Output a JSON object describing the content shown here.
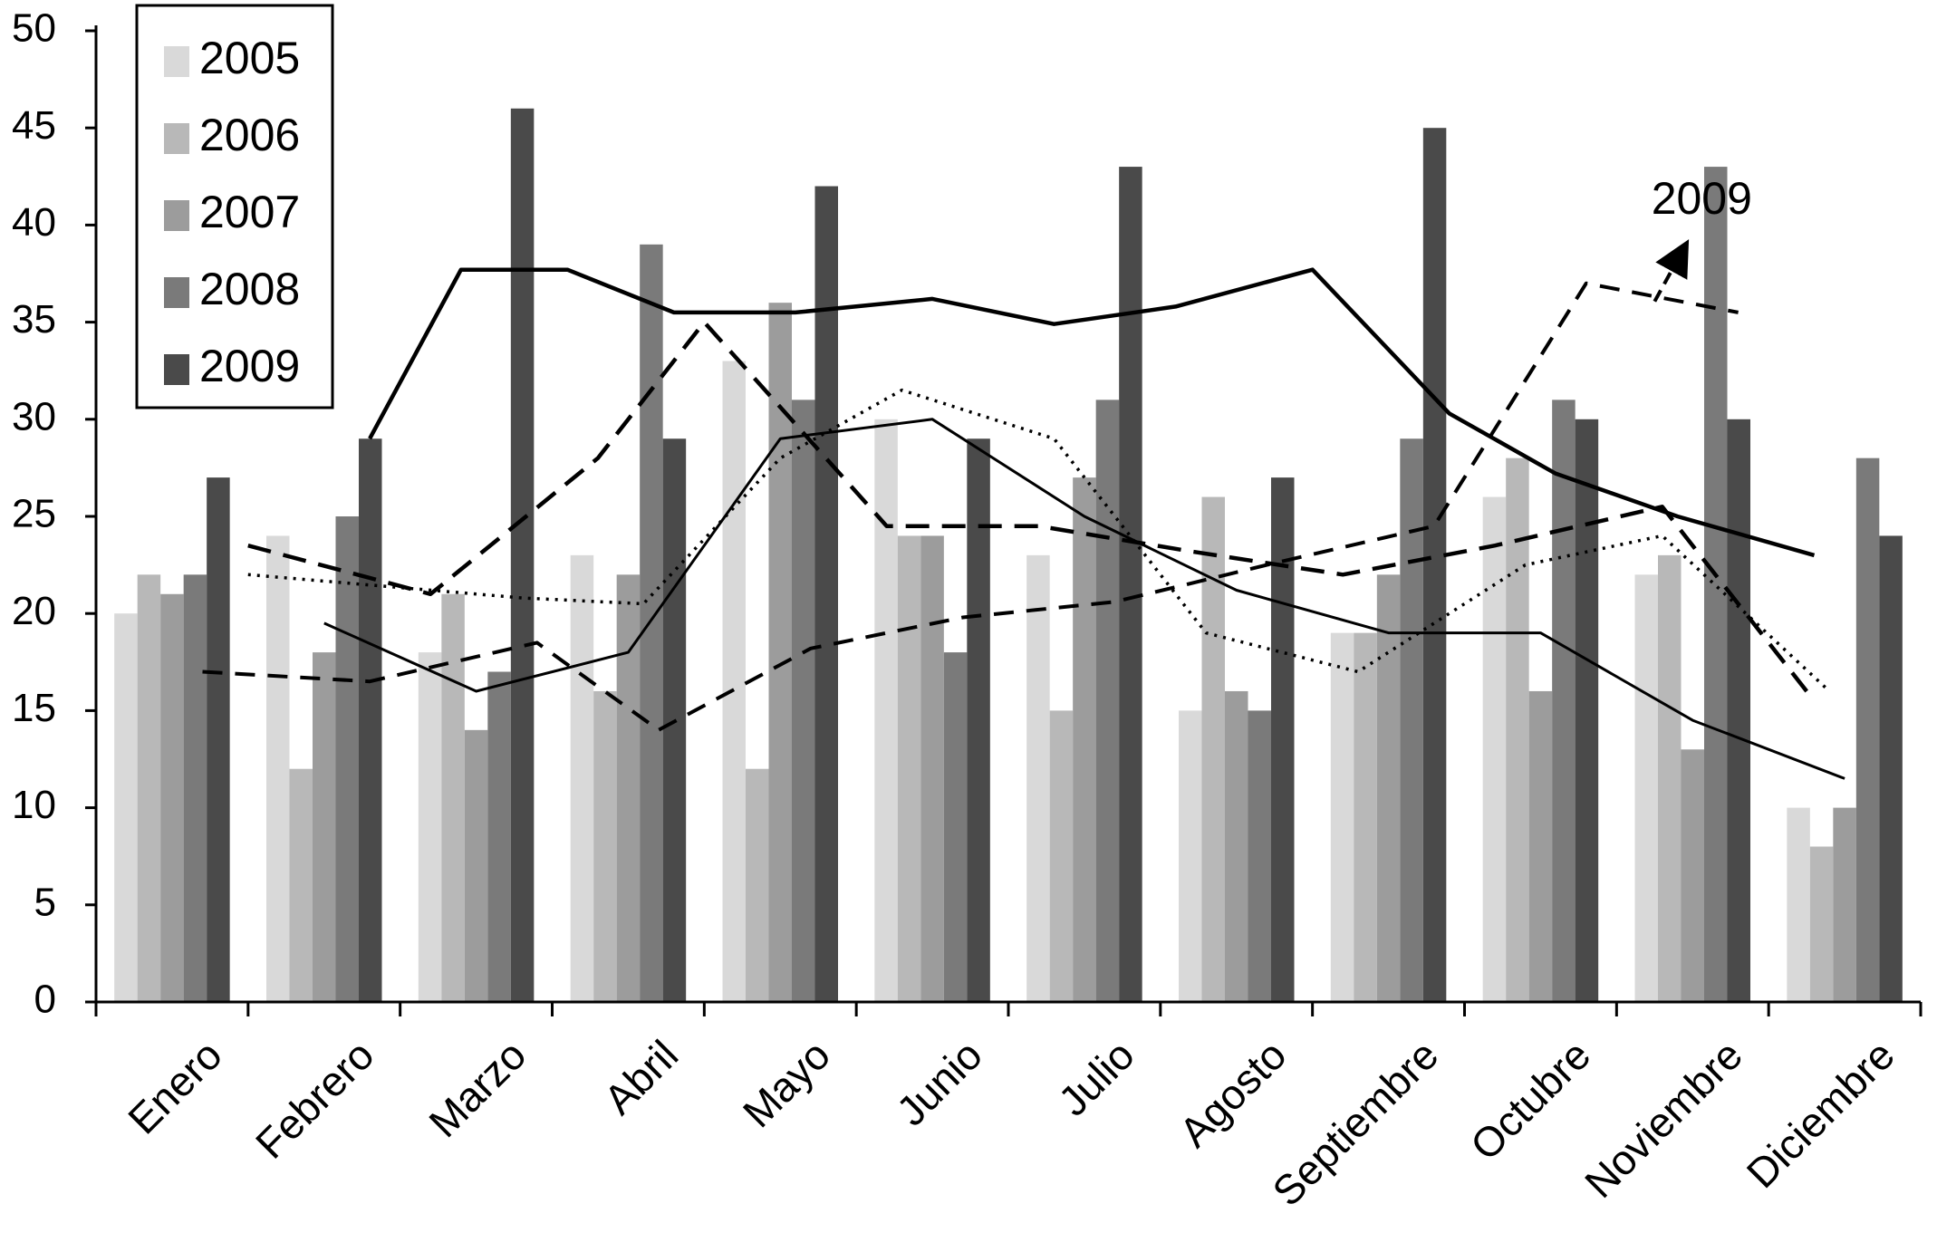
{
  "chart_data": {
    "type": "bar",
    "title": "",
    "xlabel": "",
    "ylabel": "",
    "ylim": [
      0,
      50
    ],
    "yticks": [
      0,
      5,
      10,
      15,
      20,
      25,
      30,
      35,
      40,
      45,
      50
    ],
    "grid": false,
    "legend_position": "top-left",
    "categories": [
      "Enero",
      "Febrero",
      "Marzo",
      "Abril",
      "Mayo",
      "Junio",
      "Julio",
      "Agosto",
      "Septiembre",
      "Octubre",
      "Noviembre",
      "Diciembre"
    ],
    "series": [
      {
        "name": "2005",
        "color": "#d9d9d9",
        "values": [
          20,
          24,
          18,
          23,
          33,
          30,
          23,
          15,
          19,
          26,
          22,
          10
        ]
      },
      {
        "name": "2006",
        "color": "#b8b8b8",
        "values": [
          22,
          12,
          21,
          16,
          12,
          24,
          15,
          26,
          19,
          28,
          23,
          8
        ]
      },
      {
        "name": "2007",
        "color": "#9c9c9c",
        "values": [
          21,
          18,
          14,
          22,
          36,
          24,
          27,
          16,
          22,
          16,
          13,
          10
        ]
      },
      {
        "name": "2008",
        "color": "#7a7a7a",
        "values": [
          22,
          25,
          17,
          39,
          31,
          18,
          31,
          15,
          29,
          31,
          43,
          28
        ]
      },
      {
        "name": "2009",
        "color": "#4a4a4a",
        "values": [
          27,
          29,
          46,
          29,
          42,
          29,
          43,
          27,
          45,
          30,
          30,
          24
        ]
      }
    ],
    "trend_lines": [
      {
        "series": "2005",
        "style": "thin-solid",
        "x": [
          1,
          2,
          3,
          4,
          5,
          6,
          7,
          8,
          9,
          10,
          11
        ],
        "y": [
          19.5,
          16,
          18,
          29,
          30,
          25,
          21.2,
          19,
          19,
          14.5,
          11.5
        ]
      },
      {
        "series": "2006",
        "style": "dotted",
        "x": [
          0.5,
          2.3,
          3.1,
          4.0,
          4.8,
          5.8,
          6.8,
          7.8,
          8.9,
          9.8,
          10.9
        ],
        "y": [
          22,
          20.8,
          20.5,
          28,
          31.5,
          29,
          19,
          17,
          22.5,
          24,
          16
        ]
      },
      {
        "series": "2007",
        "style": "dashed-medium",
        "x": [
          0.5,
          1.7,
          2.8,
          3.5,
          4.7,
          5.7,
          6.7,
          7.7,
          8.7,
          9.8,
          10.8
        ],
        "y": [
          23.5,
          21,
          28,
          35,
          24.5,
          24.5,
          23.2,
          22,
          23.5,
          25.5,
          15.5
        ]
      },
      {
        "series": "2008",
        "style": "dashed-long",
        "x": [
          0.2,
          1.3,
          2.4,
          3.2,
          4.2,
          5.2,
          6.2,
          7.2,
          8.3,
          9.3,
          10.3
        ],
        "y": [
          17,
          16.5,
          18.5,
          14,
          18.2,
          19.8,
          20.6,
          22.5,
          24.5,
          37,
          35.5
        ]
      },
      {
        "series": "2009",
        "style": "thick-solid",
        "x": [
          1.3,
          1.9,
          2.6,
          3.3,
          4.1,
          5.0,
          5.8,
          6.6,
          7.5,
          8.4,
          9.1,
          9.9,
          10.8
        ],
        "y": [
          29,
          37.7,
          37.7,
          35.5,
          35.5,
          36.2,
          34.9,
          35.8,
          37.7,
          30.3,
          27.2,
          25,
          23
        ]
      }
    ],
    "annotations": [
      {
        "text": "2009",
        "x": 10.06,
        "y": 41.2
      }
    ]
  }
}
